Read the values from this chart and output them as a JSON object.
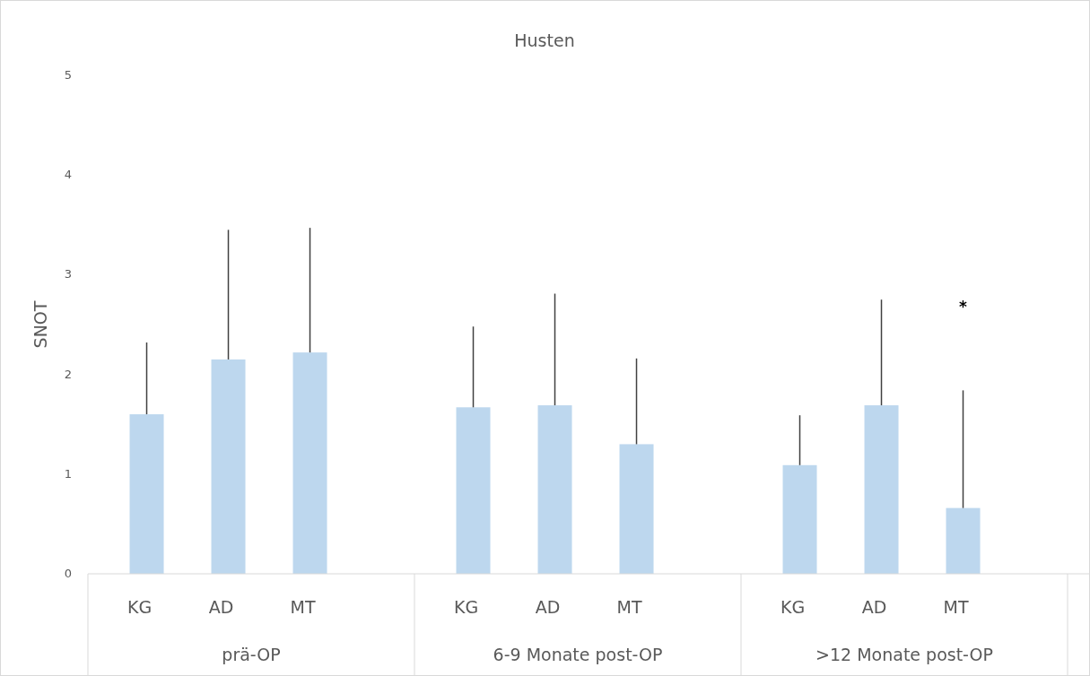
{
  "chart_data": {
    "type": "bar",
    "title": "Husten",
    "ylabel": "SNOT",
    "categories": [
      "KG",
      "AD",
      "MT",
      null,
      "KG",
      "AD",
      "MT",
      null,
      "KG",
      "AD",
      "MT",
      null
    ],
    "values": [
      1.6,
      2.15,
      2.22,
      null,
      1.67,
      1.69,
      1.3,
      null,
      1.09,
      1.69,
      0.66,
      null
    ],
    "errors": [
      [
        1.6,
        2.32
      ],
      [
        2.15,
        3.45
      ],
      [
        2.22,
        3.47
      ],
      null,
      [
        1.67,
        2.48
      ],
      [
        1.69,
        2.81
      ],
      [
        1.3,
        2.16
      ],
      null,
      [
        1.09,
        1.59
      ],
      [
        1.69,
        2.75
      ],
      [
        0.66,
        1.84
      ],
      null
    ],
    "color": "#bdd7ee",
    "ylim": [
      0,
      5
    ],
    "yticks": [
      0,
      1,
      2,
      3,
      4,
      5
    ],
    "grid": false,
    "annotations": [
      "prä-OP",
      "6-9 Monate post-OP",
      ">12 Monate post-OP",
      "*"
    ]
  }
}
